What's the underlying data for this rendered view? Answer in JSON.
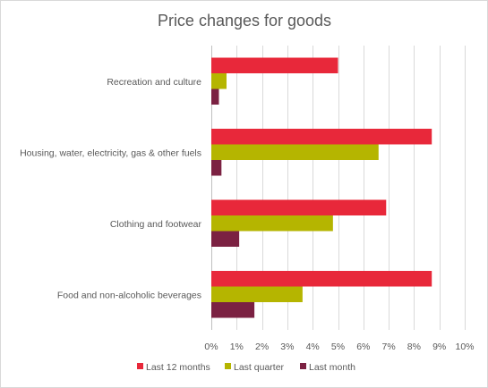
{
  "chart_data": {
    "type": "bar",
    "orientation": "horizontal",
    "title": "Price changes for goods",
    "categories": [
      "Recreation and culture",
      "Housing, water, electricity, gas & other fuels",
      "Clothing and footwear",
      "Food and non-alcoholic beverages"
    ],
    "series": [
      {
        "name": "Last 12 months",
        "color": "#e8283a",
        "values": [
          5.0,
          8.7,
          6.9,
          8.7
        ]
      },
      {
        "name": "Last quarter",
        "color": "#b5b500",
        "values": [
          0.6,
          6.6,
          4.8,
          3.6
        ]
      },
      {
        "name": "Last month",
        "color": "#7b2142",
        "values": [
          0.3,
          0.4,
          1.1,
          1.7
        ]
      }
    ],
    "xlim": [
      0,
      10
    ],
    "ticks": [
      "0%",
      "1%",
      "2%",
      "3%",
      "4%",
      "5%",
      "6%",
      "7%",
      "8%",
      "9%",
      "10%"
    ],
    "grid": true,
    "legend": "bottom"
  }
}
